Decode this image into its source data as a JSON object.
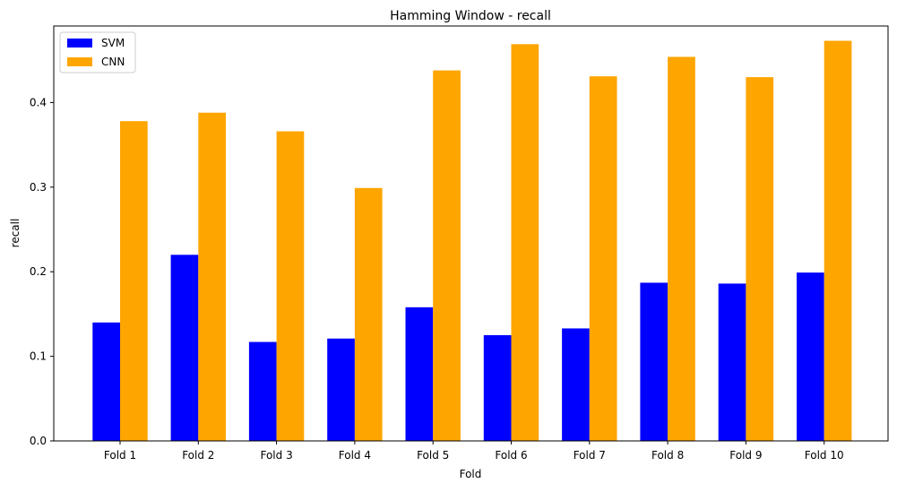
{
  "chart_data": {
    "type": "bar",
    "title": "Hamming Window - recall",
    "xlabel": "Fold",
    "ylabel": "recall",
    "categories": [
      "Fold 1",
      "Fold 2",
      "Fold 3",
      "Fold 4",
      "Fold 5",
      "Fold 6",
      "Fold 7",
      "Fold 8",
      "Fold 9",
      "Fold 10"
    ],
    "series": [
      {
        "name": "SVM",
        "color": "#0000ff",
        "values": [
          0.14,
          0.22,
          0.117,
          0.121,
          0.158,
          0.125,
          0.133,
          0.187,
          0.186,
          0.199
        ]
      },
      {
        "name": "CNN",
        "color": "#ffa500",
        "values": [
          0.378,
          0.388,
          0.366,
          0.299,
          0.438,
          0.469,
          0.431,
          0.454,
          0.43,
          0.473
        ]
      }
    ],
    "ylim": [
      0,
      0.4905
    ],
    "yticks": [
      0.0,
      0.1,
      0.2,
      0.3,
      0.4
    ],
    "ytick_labels": [
      "0.0",
      "0.1",
      "0.2",
      "0.3",
      "0.4"
    ],
    "grid": false,
    "legend_position": "top-left"
  }
}
